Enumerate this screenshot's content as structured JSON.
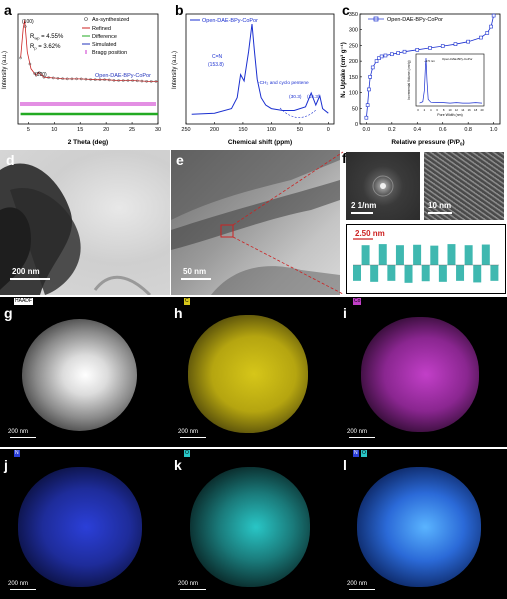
{
  "panels": {
    "a": "a",
    "b": "b",
    "c": "c",
    "d": "d",
    "e": "e",
    "f": "f",
    "g": "g",
    "h": "h",
    "i": "i",
    "j": "j",
    "k": "k",
    "l": "l"
  },
  "chart_data": [
    {
      "type": "line",
      "panel": "a",
      "xlabel": "2 Theta (deg)",
      "ylabel": "Intensity (a.u.)",
      "xlim": [
        3,
        30
      ],
      "xticks": [
        "5",
        "10",
        "15",
        "20",
        "25",
        "30"
      ],
      "legend": [
        "As-synthesized",
        "Refined",
        "Difference",
        "Simulated",
        "Bragg position"
      ],
      "legend_colors": [
        "#555555",
        "#cc2222",
        "#22aa22",
        "#2233bb",
        "#cc33cc"
      ],
      "annotations": {
        "peak100": "(100)",
        "peak020": "(020)",
        "rwp": "R",
        "rwp_sub": "wp",
        "rwp_val": " = 4.55%",
        "rp": "R",
        "rp_sub": "p",
        "rp_val": " = 3.62%",
        "sample": "Open-DAE-BPy-CoPor"
      },
      "series": [
        {
          "name": "As-synthesized",
          "x": [
            3.5,
            4.0,
            4.3,
            4.8,
            5.5,
            6.5,
            7.0,
            8,
            10,
            12,
            15,
            18,
            20,
            22,
            25,
            28,
            30
          ],
          "y": [
            0.55,
            0.9,
            1.0,
            0.62,
            0.42,
            0.34,
            0.38,
            0.32,
            0.31,
            0.3,
            0.3,
            0.29,
            0.29,
            0.28,
            0.28,
            0.27,
            0.27
          ]
        },
        {
          "name": "Difference",
          "x": [
            3.5,
            30
          ],
          "y": [
            0.05,
            0.05
          ]
        }
      ]
    },
    {
      "type": "line",
      "panel": "b",
      "xlabel": "Chemical shift (ppm)",
      "ylabel": "Intensity (a.u.)",
      "xlim": [
        250,
        -10
      ],
      "xticks": [
        "250",
        "200",
        "150",
        "100",
        "50",
        "0"
      ],
      "legend": [
        "Open-DAE-BPy-CoPor"
      ],
      "annotations": {
        "peak1": "C=N",
        "peak1_val": "(153.8)",
        "peak2": "-CH₂ and cyclo pentene",
        "peak3": "(30.3)",
        "peak4": "(15.3)"
      },
      "series": [
        {
          "name": "Open-DAE-BPy-CoPor",
          "x": [
            240,
            200,
            170,
            160,
            154,
            148,
            140,
            134,
            130,
            125,
            118,
            110,
            100,
            80,
            60,
            40,
            30,
            22,
            15,
            10,
            0
          ],
          "y": [
            0.02,
            0.03,
            0.08,
            0.2,
            0.45,
            0.38,
            0.7,
            1.0,
            0.72,
            0.4,
            0.2,
            0.12,
            0.08,
            0.06,
            0.06,
            0.1,
            0.25,
            0.12,
            0.22,
            0.08,
            0.03
          ]
        }
      ]
    },
    {
      "type": "scatter",
      "panel": "c",
      "xlabel": "Relative pressure (P/P",
      "xlabel_sub": "0",
      "ylabel": "N₂ Uptake (cm³ g⁻¹)",
      "xlim": [
        -0.05,
        1.05
      ],
      "ylim": [
        0,
        350
      ],
      "xticks": [
        "0.0",
        "0.2",
        "0.4",
        "0.6",
        "0.8",
        "1.0"
      ],
      "yticks": [
        "0",
        "50",
        "100",
        "150",
        "200",
        "250",
        "300",
        "350"
      ],
      "legend": [
        "Open-DAE-BPy-CoPor"
      ],
      "series": [
        {
          "name": "Open-DAE-BPy-CoPor",
          "x": [
            0.0,
            0.01,
            0.02,
            0.03,
            0.05,
            0.08,
            0.1,
            0.12,
            0.15,
            0.2,
            0.25,
            0.3,
            0.4,
            0.5,
            0.6,
            0.7,
            0.8,
            0.9,
            0.95,
            0.98,
            1.0
          ],
          "y": [
            20,
            60,
            110,
            150,
            180,
            200,
            210,
            215,
            218,
            222,
            226,
            230,
            236,
            242,
            248,
            254,
            262,
            275,
            290,
            310,
            345
          ]
        }
      ],
      "inset": {
        "xlabel": "Pore Width (nm)",
        "ylabel": "Incremental Volume (cm³/g)",
        "legend": "Open-DAE-BPy-CoPor",
        "peak_label": "~2.5 nm",
        "xticks": [
          "0",
          "2",
          "4",
          "6",
          "8",
          "10",
          "12",
          "14",
          "16",
          "18",
          "20"
        ],
        "x": [
          0.5,
          1.5,
          2.0,
          2.3,
          2.5,
          2.8,
          3.2,
          4,
          6,
          8,
          10,
          12,
          14,
          16,
          18,
          20
        ],
        "y": [
          0.02,
          0.05,
          0.3,
          0.8,
          1.0,
          0.5,
          0.1,
          0.04,
          0.03,
          0.03,
          0.02,
          0.03,
          0.02,
          0.02,
          0.03,
          0.02
        ]
      }
    },
    {
      "type": "bar",
      "panel": "f-profile",
      "annotations": {
        "period": "2.50 nm"
      },
      "values": [
        0.2,
        0.9,
        0.15,
        0.95,
        0.2,
        0.9,
        0.1,
        0.92,
        0.18,
        0.88,
        0.15,
        0.95,
        0.2,
        0.9,
        0.12,
        0.93,
        0.2
      ]
    }
  ],
  "images": {
    "d": {
      "scale": "200 nm"
    },
    "e": {
      "scale": "50 nm"
    },
    "f_fft": {
      "scale": "2 1/nm"
    },
    "f_hr": {
      "scale": "10 nm"
    },
    "g": {
      "label": "HAADF",
      "scale": "200 nm"
    },
    "h": {
      "label": "C",
      "scale": "200 nm"
    },
    "i": {
      "label": "Co",
      "scale": "200 nm"
    },
    "j": {
      "label": "N",
      "scale": "200 nm"
    },
    "k": {
      "label": "O",
      "scale": "200 nm"
    },
    "l": {
      "label_n": "N",
      "label_o": "O",
      "scale": "200 nm"
    }
  },
  "colors": {
    "carbon": "#d6c619",
    "cobalt": "#c23fc8",
    "nitrogen": "#2b3fd8",
    "oxygen": "#29c6c6",
    "profile": "#3fb8b0",
    "accent_red": "#cc2222"
  }
}
